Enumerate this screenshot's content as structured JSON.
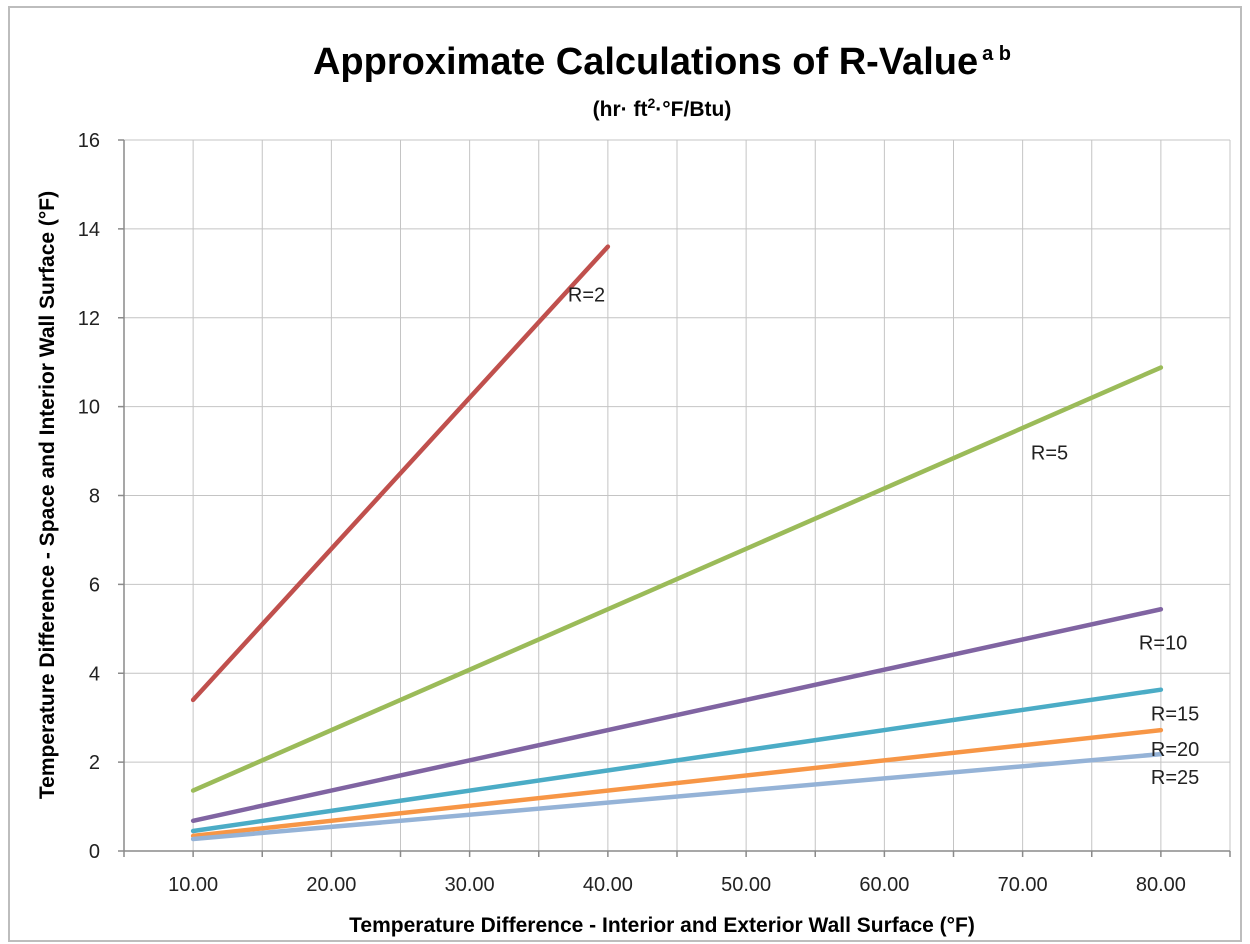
{
  "chart_data": {
    "type": "line",
    "title": "Approximate Calculations of R-Value",
    "title_superscript": "a b",
    "subtitle_prefix": "(hr· ft",
    "subtitle_exp": "2",
    "subtitle_suffix": "·°F/Btu)",
    "xlabel": "Temperature Difference  - Interior and Exterior Wall Surface (°F)",
    "ylabel": "Temperature Difference  - Space and Interior Wall Surface  (°F)",
    "x_ticks": [
      "10.00",
      "20.00",
      "30.00",
      "40.00",
      "50.00",
      "60.00",
      "70.00",
      "80.00"
    ],
    "y_ticks": [
      "0",
      "2",
      "4",
      "6",
      "8",
      "10",
      "12",
      "14",
      "16"
    ],
    "xlim": [
      5,
      85
    ],
    "ylim": [
      0,
      16
    ],
    "grid": true,
    "legend": "none",
    "series": [
      {
        "name": "R=2",
        "color": "#c0504d",
        "x": [
          10,
          40
        ],
        "y": [
          3.4,
          13.6
        ]
      },
      {
        "name": "R=5",
        "color": "#9bbb59",
        "x": [
          10,
          80
        ],
        "y": [
          1.36,
          10.88
        ]
      },
      {
        "name": "R=10",
        "color": "#8064a2",
        "x": [
          10,
          80
        ],
        "y": [
          0.68,
          5.44
        ]
      },
      {
        "name": "R=15",
        "color": "#4bacc6",
        "x": [
          10,
          80
        ],
        "y": [
          0.45,
          3.63
        ]
      },
      {
        "name": "R=20",
        "color": "#f79646",
        "x": [
          10,
          80
        ],
        "y": [
          0.34,
          2.72
        ]
      },
      {
        "name": "R=25",
        "color": "#95b3d7",
        "x": [
          10,
          80
        ],
        "y": [
          0.27,
          2.18
        ]
      }
    ]
  }
}
